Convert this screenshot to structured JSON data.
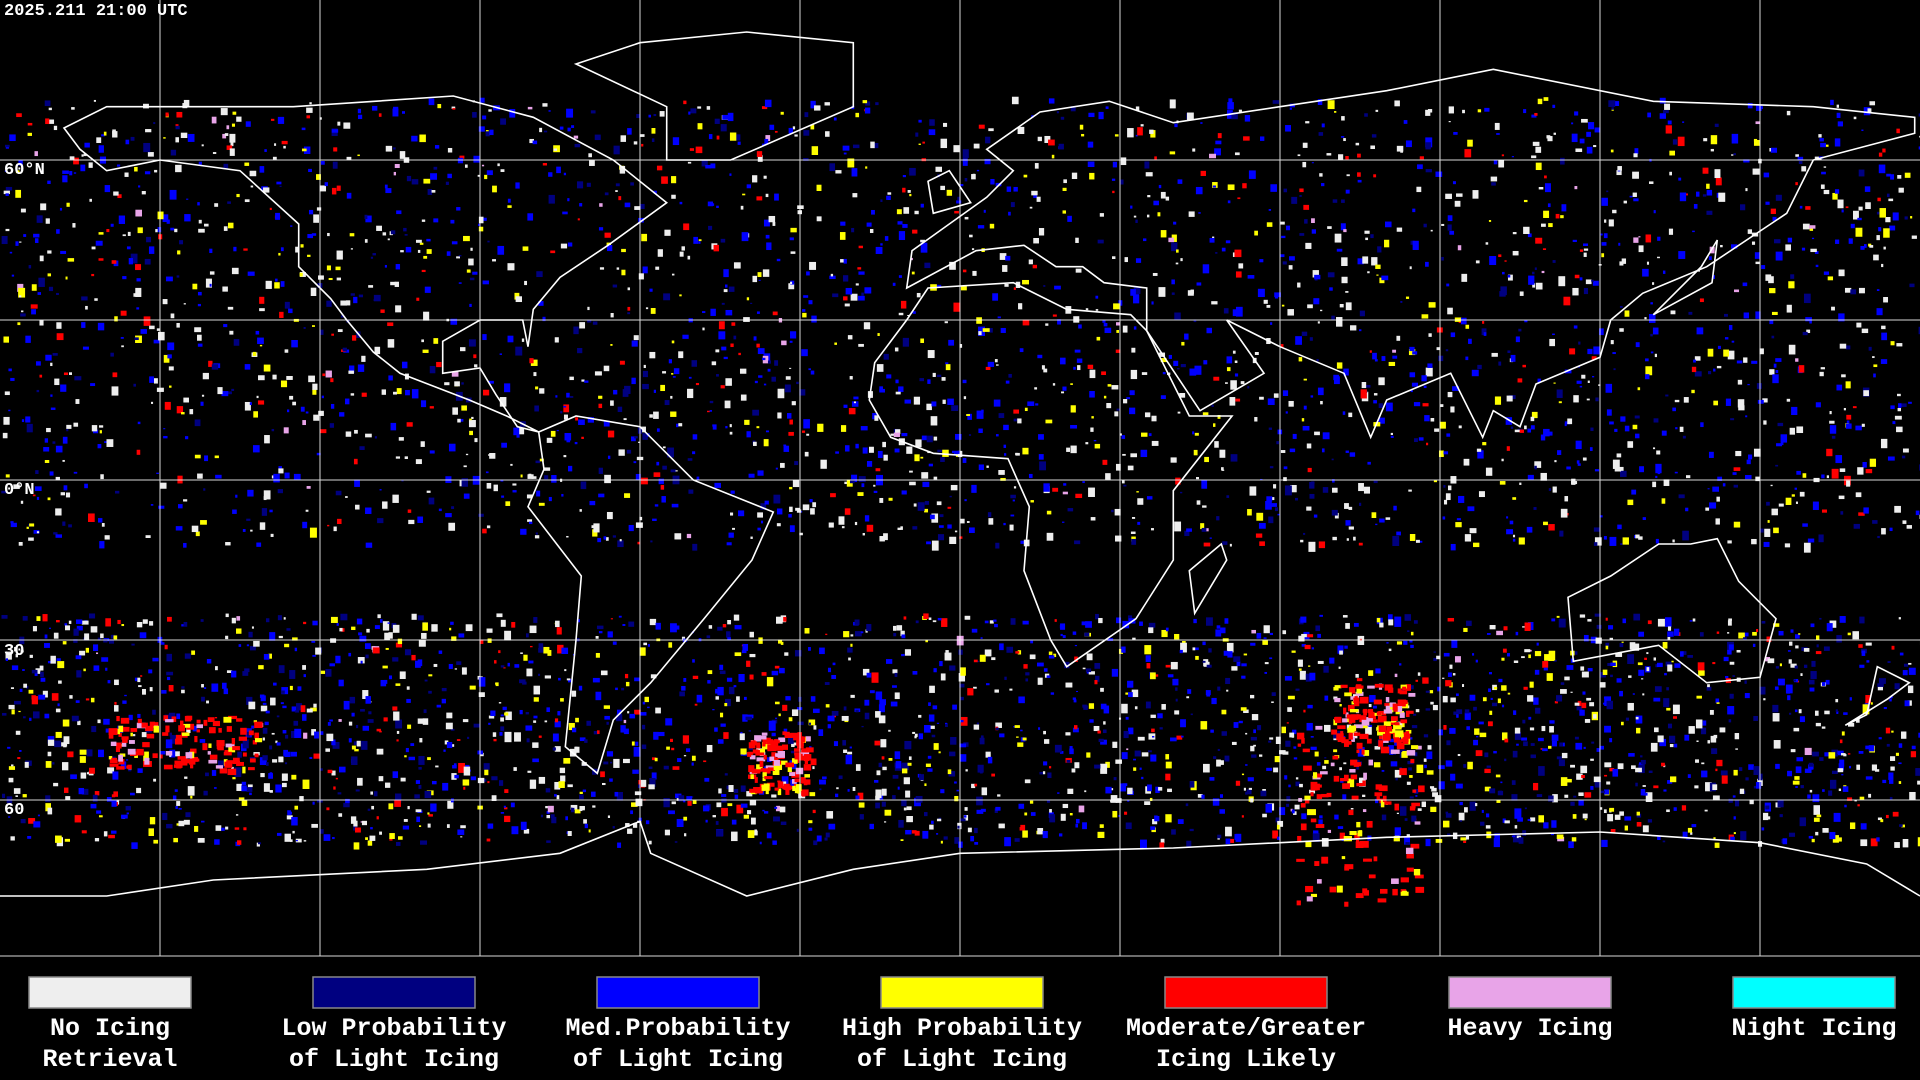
{
  "timestamp": "2025.211 21:00 UTC",
  "map": {
    "lat_labels": [
      "60°N",
      "0°N",
      "30",
      "60"
    ]
  },
  "legend": [
    {
      "color": "#eeeeee",
      "label": [
        "No Icing",
        "Retrieval"
      ]
    },
    {
      "color": "#000080",
      "label": [
        "Low Probability",
        "of Light Icing"
      ]
    },
    {
      "color": "#0000ff",
      "label": [
        "Med.Probability",
        "of Light Icing"
      ]
    },
    {
      "color": "#ffff00",
      "label": [
        "High Probability",
        "of Light Icing"
      ]
    },
    {
      "color": "#ff0000",
      "label": [
        "Moderate/Greater",
        "Icing Likely"
      ]
    },
    {
      "color": "#e8a4e8",
      "label": [
        "Heavy Icing"
      ]
    },
    {
      "color": "#00ffff",
      "label": [
        "Night Icing"
      ]
    }
  ]
}
